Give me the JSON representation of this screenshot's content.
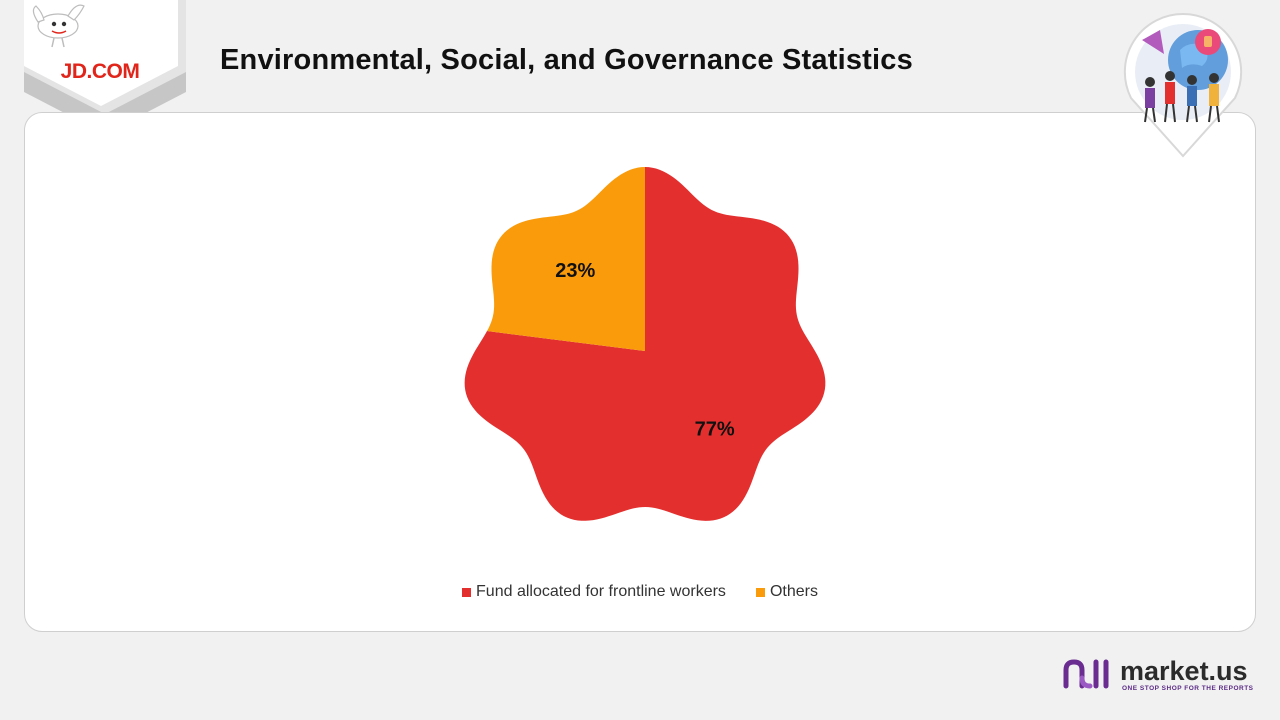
{
  "header": {
    "logo_text": "JD.COM",
    "title": "Environmental, Social, and Governance Statistics"
  },
  "colors": {
    "logo_red": "#e1251b",
    "series_1": "#e3302f",
    "series_2": "#f99b0b",
    "brand_purple": "#6a2c91"
  },
  "icons": {
    "logo_mascot": "dog-mascot-icon",
    "badge": "people-globe-badge-icon",
    "brand": "market-us-logo-icon"
  },
  "chart_data": {
    "type": "pie",
    "categories": [
      "Fund allocated for frontline workers",
      "Others"
    ],
    "values": [
      77,
      23
    ],
    "value_labels": [
      "77%",
      "23%"
    ],
    "colors": [
      "#e3302f",
      "#f99b0b"
    ],
    "start_angle": 0,
    "legend_position": "bottom"
  },
  "brand": {
    "name": "market.us",
    "tagline": "ONE STOP SHOP FOR THE REPORTS"
  }
}
